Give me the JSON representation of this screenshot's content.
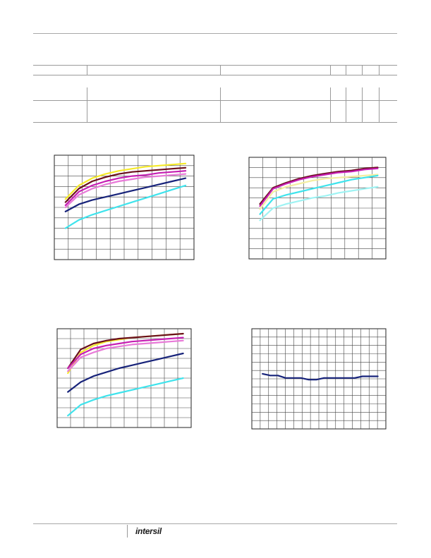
{
  "footer": {
    "logo_text": "intersil"
  },
  "colors": {
    "yellow": "#f5e92a",
    "maroon": "#6a0f1c",
    "magenta": "#c61fb3",
    "pink": "#e87ad8",
    "navy": "#17237a",
    "cyan": "#3fe3ec",
    "lightyellow": "#f3eea0",
    "lightcyan": "#9ef3f3"
  },
  "chart_data": [
    {
      "type": "line",
      "title": "",
      "xlabel": "",
      "ylabel": "",
      "x": [
        0,
        1,
        2,
        3,
        4,
        5,
        6,
        7,
        8,
        9
      ],
      "xlim": [
        0,
        10
      ],
      "ylim": [
        0,
        10
      ],
      "grid": true,
      "series": [
        {
          "color": "yellow",
          "values": [
            5.8,
            7.1,
            7.8,
            8.2,
            8.5,
            8.7,
            8.9,
            9.0,
            9.1,
            9.2
          ]
        },
        {
          "color": "maroon",
          "values": [
            5.5,
            6.8,
            7.5,
            7.9,
            8.2,
            8.4,
            8.5,
            8.6,
            8.7,
            8.8
          ]
        },
        {
          "color": "magenta",
          "values": [
            5.2,
            6.5,
            7.1,
            7.5,
            7.8,
            8.0,
            8.1,
            8.3,
            8.4,
            8.5
          ]
        },
        {
          "color": "pink",
          "values": [
            5.0,
            6.2,
            6.8,
            7.2,
            7.5,
            7.7,
            7.9,
            8.0,
            8.1,
            8.2
          ]
        },
        {
          "color": "navy",
          "values": [
            4.6,
            5.3,
            5.7,
            6.0,
            6.3,
            6.6,
            6.9,
            7.2,
            7.5,
            7.8
          ]
        },
        {
          "color": "cyan",
          "values": [
            3.0,
            3.8,
            4.3,
            4.7,
            5.1,
            5.5,
            5.9,
            6.3,
            6.7,
            7.1
          ]
        }
      ]
    },
    {
      "type": "line",
      "title": "",
      "xlabel": "",
      "ylabel": "",
      "x": [
        0,
        1,
        2,
        3,
        4,
        5,
        6,
        7,
        8,
        9
      ],
      "xlim": [
        0,
        10
      ],
      "ylim": [
        0,
        10
      ],
      "grid": true,
      "series": [
        {
          "color": "maroon",
          "values": [
            5.4,
            7.0,
            7.5,
            7.9,
            8.2,
            8.4,
            8.6,
            8.7,
            8.9,
            9.0
          ]
        },
        {
          "color": "magenta",
          "values": [
            5.2,
            6.9,
            7.4,
            7.8,
            8.1,
            8.3,
            8.5,
            8.6,
            8.8,
            8.9
          ]
        },
        {
          "color": "lightyellow",
          "values": [
            4.9,
            6.6,
            7.1,
            7.4,
            7.7,
            7.9,
            8.0,
            8.1,
            8.2,
            8.3
          ]
        },
        {
          "color": "cyan",
          "values": [
            4.4,
            5.9,
            6.3,
            6.6,
            6.9,
            7.2,
            7.5,
            7.8,
            8.0,
            8.2
          ]
        },
        {
          "color": "lightcyan",
          "values": [
            3.8,
            5.0,
            5.4,
            5.7,
            6.0,
            6.2,
            6.5,
            6.7,
            6.9,
            7.1
          ]
        }
      ]
    },
    {
      "type": "line",
      "title": "",
      "xlabel": "",
      "ylabel": "",
      "x": [
        0,
        1,
        2,
        3,
        4,
        5,
        6,
        7,
        8,
        9
      ],
      "xlim": [
        0,
        10
      ],
      "ylim": [
        0,
        10
      ],
      "grid": true,
      "series": [
        {
          "color": "yellow",
          "values": [
            5.5,
            7.6,
            8.3,
            8.7,
            8.9,
            9.1,
            9.2,
            9.3,
            9.4,
            9.5
          ]
        },
        {
          "color": "maroon",
          "values": [
            6.0,
            7.9,
            8.5,
            8.8,
            9.0,
            9.1,
            9.2,
            9.3,
            9.4,
            9.5
          ]
        },
        {
          "color": "magenta",
          "values": [
            6.0,
            7.4,
            8.0,
            8.3,
            8.5,
            8.7,
            8.8,
            8.9,
            9.0,
            9.1
          ]
        },
        {
          "color": "pink",
          "values": [
            5.7,
            7.1,
            7.6,
            8.0,
            8.2,
            8.4,
            8.5,
            8.6,
            8.7,
            8.8
          ]
        },
        {
          "color": "navy",
          "values": [
            3.6,
            4.6,
            5.2,
            5.6,
            6.0,
            6.3,
            6.6,
            6.9,
            7.2,
            7.5
          ]
        },
        {
          "color": "cyan",
          "values": [
            1.2,
            2.3,
            2.8,
            3.2,
            3.5,
            3.8,
            4.1,
            4.4,
            4.7,
            5.0
          ]
        }
      ]
    },
    {
      "type": "line",
      "title": "",
      "xlabel": "",
      "ylabel": "",
      "x": [
        0,
        1,
        2,
        3,
        4,
        5,
        6,
        7,
        8,
        9,
        10,
        11,
        12,
        13,
        14,
        15
      ],
      "xlim": [
        0,
        16
      ],
      "ylim": [
        0,
        12
      ],
      "grid": true,
      "series": [
        {
          "color": "navy",
          "values": [
            6.6,
            6.4,
            6.4,
            6.1,
            6.1,
            6.1,
            5.9,
            5.9,
            6.1,
            6.1,
            6.1,
            6.1,
            6.1,
            6.3,
            6.3,
            6.3
          ]
        }
      ]
    }
  ]
}
